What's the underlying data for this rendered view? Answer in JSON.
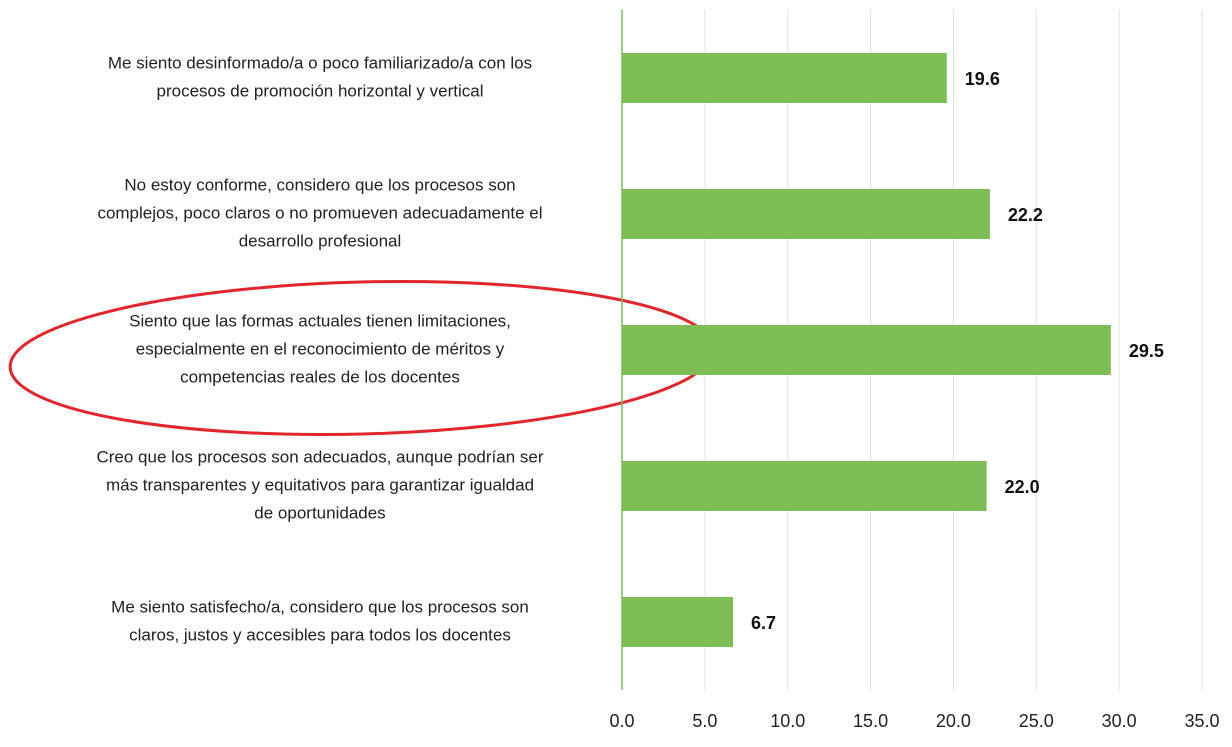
{
  "chart_data": {
    "type": "hbar",
    "categories": [
      [
        "Me siento desinformado/a o poco familiarizado/a con los",
        "procesos de promoción horizontal y vertical"
      ],
      [
        "No estoy conforme, considero que los procesos son",
        "complejos, poco claros o no promueven adecuadamente el",
        "desarrollo profesional"
      ],
      [
        "Siento que las formas actuales tienen limitaciones,",
        "especialmente en el reconocimiento de méritos y",
        "competencias reales de los docentes"
      ],
      [
        "Creo que los procesos son adecuados, aunque podrían ser",
        "más transparentes y equitativos para garantizar igualdad",
        "de oportunidades"
      ],
      [
        "Me siento satisfecho/a, considero que los procesos son",
        "claros, justos y accesibles para todos los docentes"
      ]
    ],
    "values": [
      19.6,
      22.2,
      29.5,
      22.0,
      6.7
    ],
    "value_labels": [
      "19.6",
      "22.2",
      "29.5",
      "22.0",
      "6.7"
    ],
    "color": "#7dbd55",
    "xlim": [
      0,
      35
    ],
    "xticks": [
      {
        "value": 0,
        "label": "0.0"
      },
      {
        "value": 5,
        "label": "5.0"
      },
      {
        "value": 10,
        "label": "10.0"
      },
      {
        "value": 15,
        "label": "15.0"
      },
      {
        "value": 20,
        "label": "20.0"
      },
      {
        "value": 25,
        "label": "25.0"
      },
      {
        "value": 30,
        "label": "30.0"
      },
      {
        "value": 35,
        "label": "35.0"
      }
    ],
    "grid": true
  }
}
